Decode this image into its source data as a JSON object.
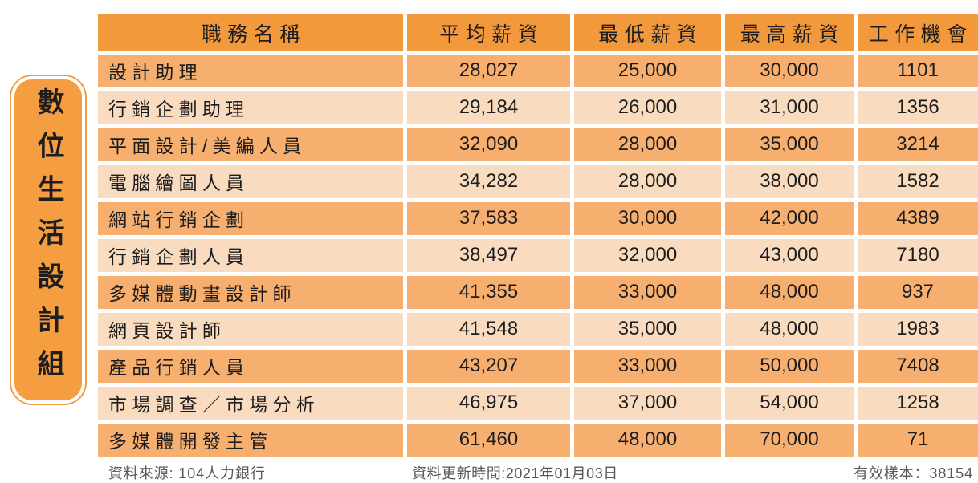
{
  "side_label": {
    "text": "數位生活設計組"
  },
  "table": {
    "headers": [
      "職務名稱",
      "平均薪資",
      "最低薪資",
      "最高薪資",
      "工作機會"
    ],
    "rows": [
      {
        "name": "設計助理",
        "avg": "28,027",
        "min": "25,000",
        "max": "30,000",
        "jobs": "1101"
      },
      {
        "name": "行銷企劃助理",
        "avg": "29,184",
        "min": "26,000",
        "max": "31,000",
        "jobs": "1356"
      },
      {
        "name": "平面設計/美編人員",
        "avg": "32,090",
        "min": "28,000",
        "max": "35,000",
        "jobs": "3214"
      },
      {
        "name": "電腦繪圖人員",
        "avg": "34,282",
        "min": "28,000",
        "max": "38,000",
        "jobs": "1582"
      },
      {
        "name": "網站行銷企劃",
        "avg": "37,583",
        "min": "30,000",
        "max": "42,000",
        "jobs": "4389"
      },
      {
        "name": "行銷企劃人員",
        "avg": "38,497",
        "min": "32,000",
        "max": "43,000",
        "jobs": "7180"
      },
      {
        "name": "多媒體動畫設計師",
        "avg": "41,355",
        "min": "33,000",
        "max": "48,000",
        "jobs": "937"
      },
      {
        "name": "網頁設計師",
        "avg": "41,548",
        "min": "35,000",
        "max": "48,000",
        "jobs": "1983"
      },
      {
        "name": "產品行銷人員",
        "avg": "43,207",
        "min": "33,000",
        "max": "50,000",
        "jobs": "7408"
      },
      {
        "name": "市場調查／市場分析",
        "avg": "46,975",
        "min": "37,000",
        "max": "54,000",
        "jobs": "1258"
      },
      {
        "name": "多媒體開發主管",
        "avg": "61,460",
        "min": "48,000",
        "max": "70,000",
        "jobs": "71"
      }
    ]
  },
  "footer": {
    "source": "資料來源: 104人力銀行",
    "updated": "資料更新時間:2021年01月03日",
    "samples": "有效樣本：38154"
  },
  "colors": {
    "header_bg": "#F2993C",
    "row_dark_bg": "#F6AF6E",
    "row_light_bg": "#F9DCBF",
    "pill_bg": "#F49D41",
    "text": "#1C1C1E",
    "footer_text": "#57575B",
    "background": "#FFFFFF"
  },
  "chart_data": {
    "type": "table",
    "title": "數位生活設計組",
    "columns": [
      "職務名稱",
      "平均薪資",
      "最低薪資",
      "最高薪資",
      "工作機會"
    ],
    "rows": [
      [
        "設計助理",
        28027,
        25000,
        30000,
        1101
      ],
      [
        "行銷企劃助理",
        29184,
        26000,
        31000,
        1356
      ],
      [
        "平面設計/美編人員",
        32090,
        28000,
        35000,
        3214
      ],
      [
        "電腦繪圖人員",
        34282,
        28000,
        38000,
        1582
      ],
      [
        "網站行銷企劃",
        37583,
        30000,
        42000,
        4389
      ],
      [
        "行銷企劃人員",
        38497,
        32000,
        43000,
        7180
      ],
      [
        "多媒體動畫設計師",
        41355,
        33000,
        48000,
        937
      ],
      [
        "網頁設計師",
        41548,
        35000,
        48000,
        1983
      ],
      [
        "產品行銷人員",
        43207,
        33000,
        50000,
        7408
      ],
      [
        "市場調查／市場分析",
        46975,
        37000,
        54000,
        1258
      ],
      [
        "多媒體開發主管",
        61460,
        48000,
        70000,
        71
      ]
    ],
    "source": "104人力銀行",
    "updated": "2021年01月03日",
    "valid_samples": 38154
  }
}
